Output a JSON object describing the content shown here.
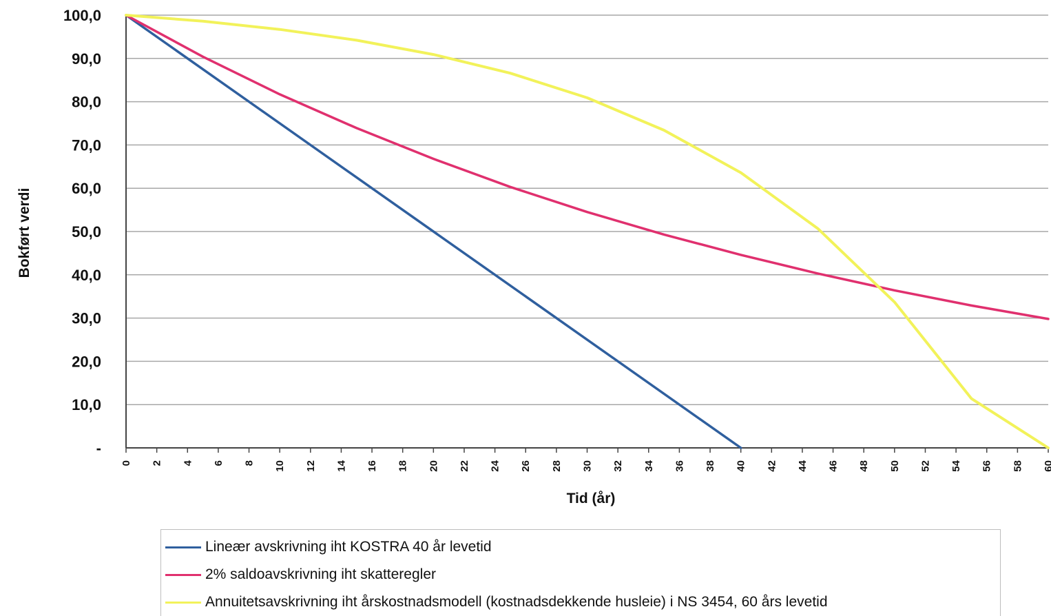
{
  "chart_data": {
    "type": "line",
    "title": "",
    "xlabel": "Tid (år)",
    "ylabel": "Bokført verdi",
    "xlim": [
      0,
      60
    ],
    "ylim": [
      0,
      100
    ],
    "x_ticks": [
      "0",
      "2",
      "4",
      "6",
      "8",
      "10",
      "12",
      "14",
      "16",
      "18",
      "20",
      "22",
      "24",
      "26",
      "28",
      "30",
      "32",
      "34",
      "36",
      "38",
      "40",
      "42",
      "44",
      "46",
      "48",
      "50",
      "52",
      "54",
      "56",
      "58",
      "60"
    ],
    "y_ticks": [
      "-",
      "10,0",
      "20,0",
      "30,0",
      "40,0",
      "50,0",
      "60,0",
      "70,0",
      "80,0",
      "90,0",
      "100,0"
    ],
    "grid": "horizontal",
    "legend_position": "bottom",
    "series": [
      {
        "name": "Lineær avskrivning iht KOSTRA 40 år levetid",
        "color": "#2f5f9e",
        "x": [
          0,
          40
        ],
        "y": [
          100,
          0
        ]
      },
      {
        "name": "2% saldoavskrivning iht skatteregler",
        "color": "#e0306e",
        "x": [
          0,
          5,
          10,
          15,
          20,
          25,
          30,
          35,
          40,
          45,
          50,
          55,
          60
        ],
        "y": [
          100,
          90.4,
          81.7,
          73.9,
          66.8,
          60.3,
          54.5,
          49.3,
          44.6,
          40.3,
          36.4,
          32.9,
          29.8
        ]
      },
      {
        "name": "Annuitetsavskrivning iht årskostnadsmodell (kostnadsdekkende husleie) i NS 3454, 60 års levetid",
        "color": "#f2f25a",
        "x": [
          0,
          5,
          10,
          15,
          20,
          25,
          30,
          35,
          40,
          45,
          50,
          55,
          60
        ],
        "y": [
          100,
          98.6,
          96.7,
          94.2,
          90.9,
          86.6,
          80.9,
          73.4,
          63.6,
          50.7,
          33.7,
          11.4,
          0
        ]
      }
    ]
  }
}
